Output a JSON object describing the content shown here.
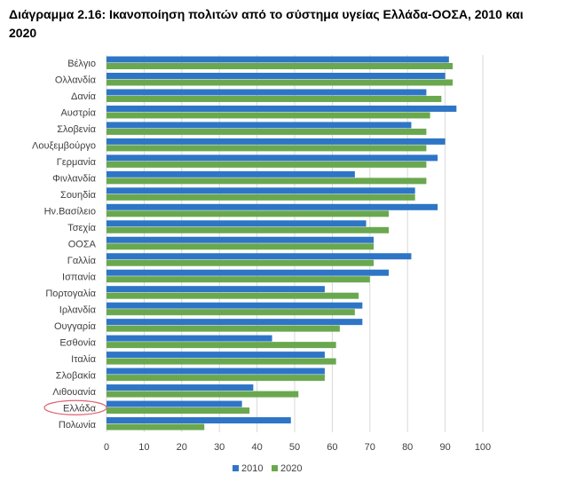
{
  "chart_data": {
    "type": "bar",
    "orientation": "horizontal",
    "title": "Διάγραμμα 2.16: Ικανοποίηση πολιτών από το σύστημα υγείας Ελλάδα-ΟΟΣΑ, 2010 και 2020",
    "categories": [
      "Βέλγιο",
      "Ολλανδία",
      "Δανία",
      "Αυστρία",
      "Σλοβενία",
      "Λουξεμβούργο",
      "Γερμανία",
      "Φινλανδία",
      "Σουηδία",
      "Ην.Βασίλειο",
      "Τσεχία",
      "ΟΟΣΑ",
      "Γαλλία",
      "Ισπανία",
      "Πορτογαλία",
      "Ιρλανδία",
      "Ουγγαρία",
      "Εσθονία",
      "Ιταλία",
      "Σλοβακία",
      "Λιθουανία",
      "Ελλάδα",
      "Πολωνία"
    ],
    "series": [
      {
        "name": "2010",
        "color": "#2e75c6",
        "values": [
          91,
          90,
          85,
          93,
          81,
          90,
          88,
          66,
          82,
          88,
          69,
          71,
          81,
          75,
          58,
          68,
          68,
          44,
          58,
          58,
          39,
          36,
          49
        ]
      },
      {
        "name": "2020",
        "color": "#6aa84f",
        "values": [
          92,
          92,
          89,
          86,
          85,
          85,
          85,
          85,
          82,
          75,
          75,
          71,
          71,
          70,
          67,
          66,
          62,
          61,
          61,
          58,
          51,
          38,
          26
        ]
      }
    ],
    "xlim": [
      0,
      100
    ],
    "xticks": [
      "0",
      "10",
      "20",
      "30",
      "40",
      "50",
      "60",
      "70",
      "80",
      "90",
      "100"
    ],
    "grid": true,
    "legend": "bottom",
    "highlighted_category": "Ελλάδα",
    "highlight_color": "#e06070"
  }
}
